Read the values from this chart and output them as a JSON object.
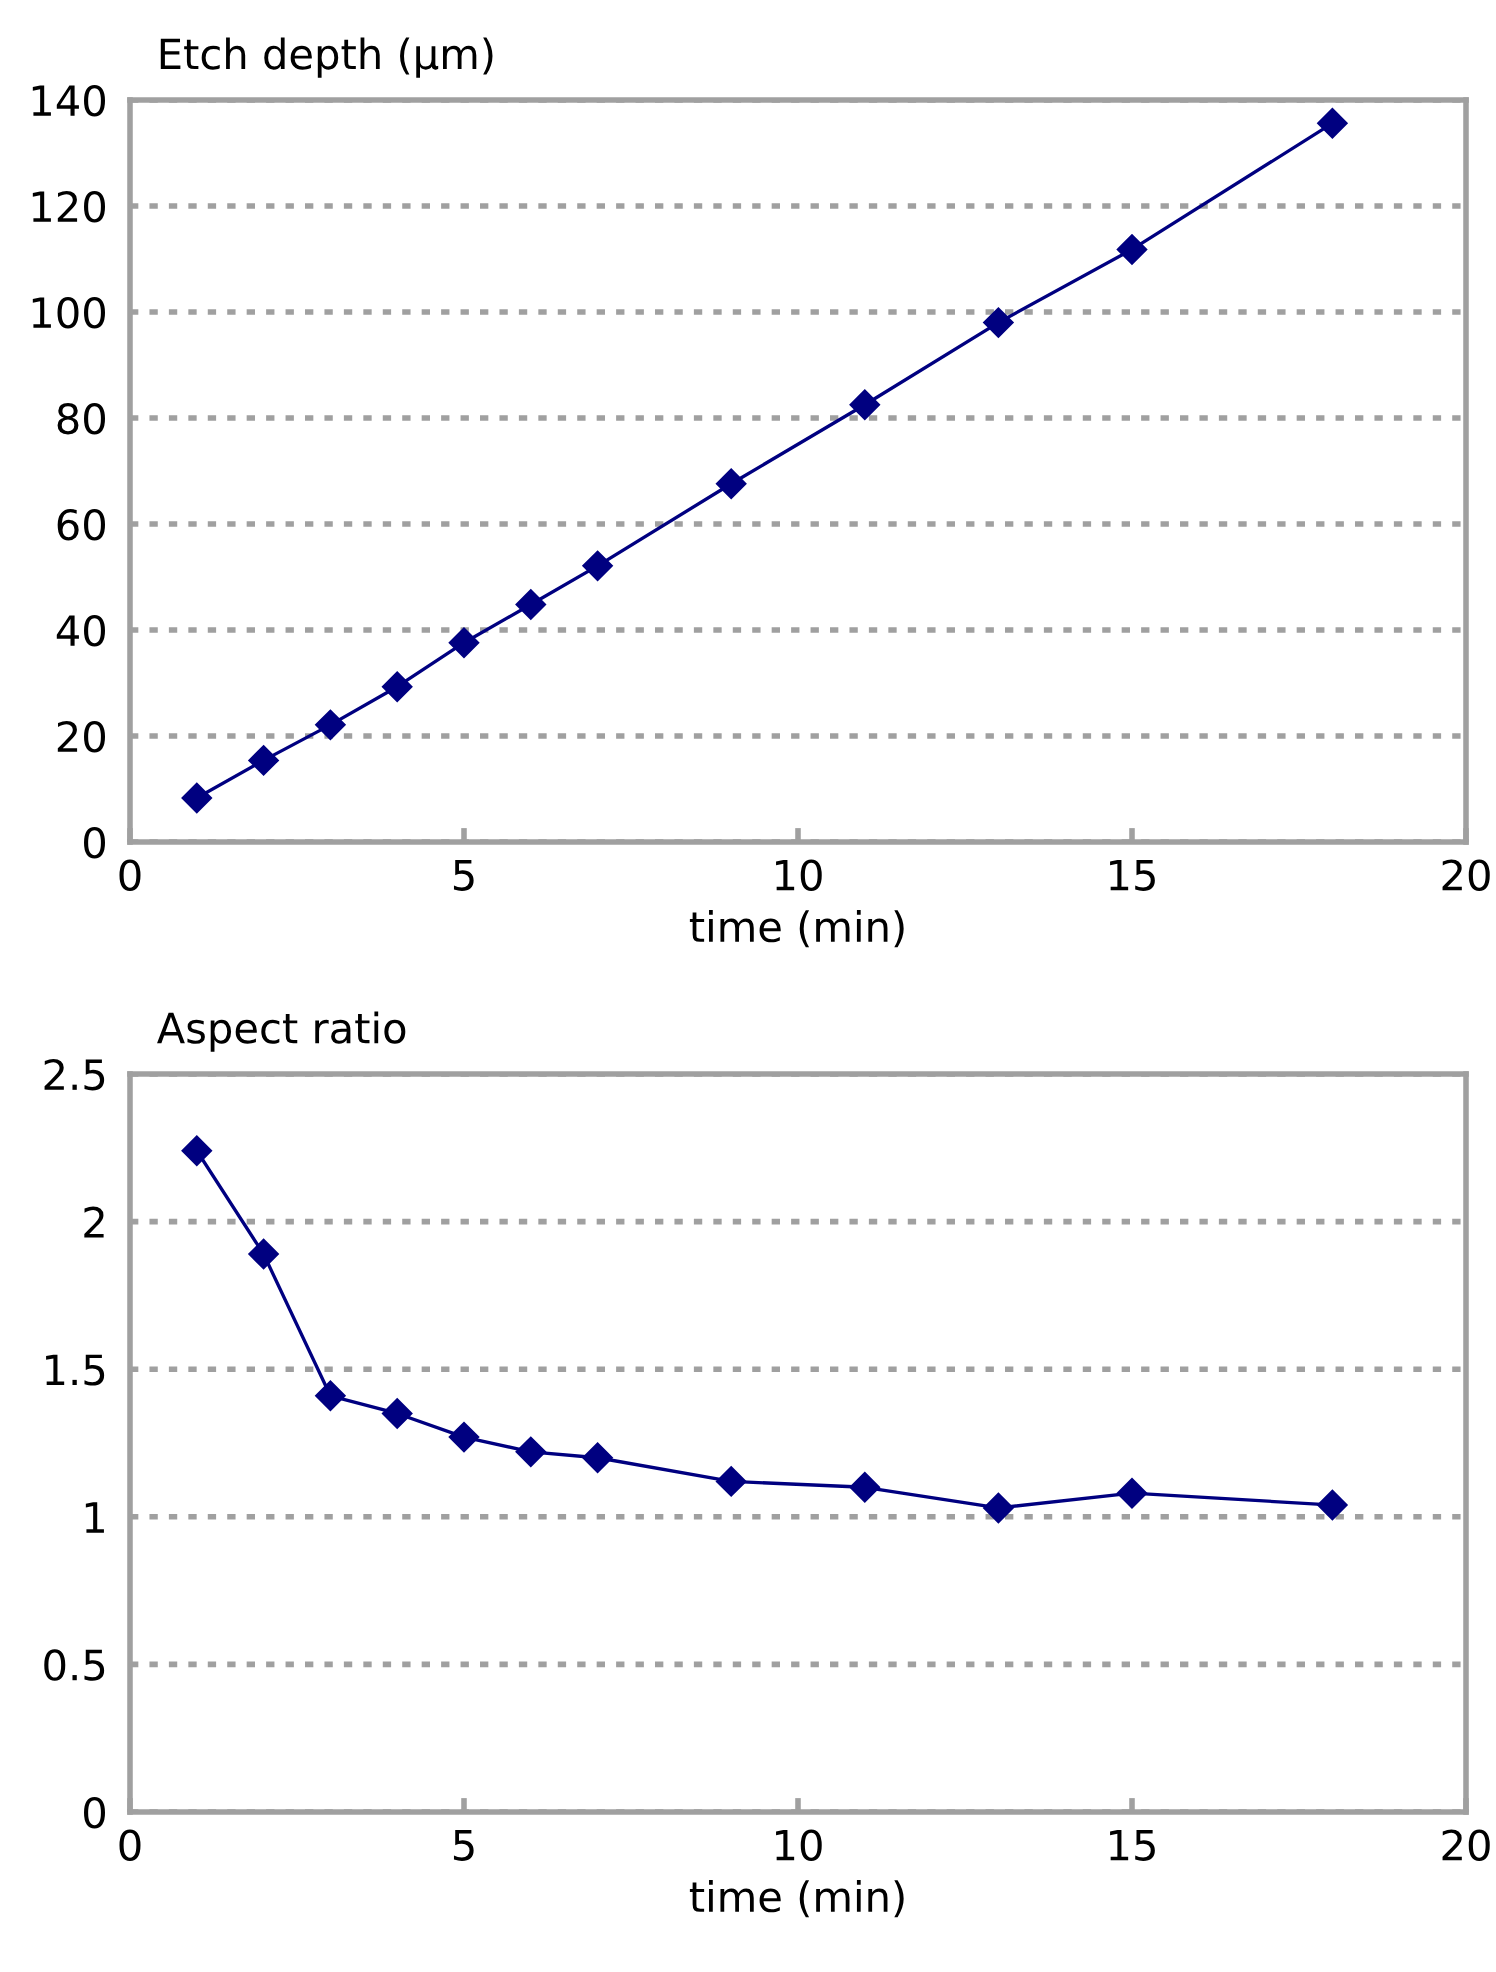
{
  "chart_data": [
    {
      "type": "line",
      "ylabel": "Etch depth (μm)",
      "xlabel": "time (min)",
      "x": [
        1,
        2,
        3,
        4,
        5,
        6,
        7,
        9,
        11,
        13,
        15,
        18
      ],
      "series": [
        {
          "color": "#000080",
          "values": [
            8.3,
            15.4,
            22.1,
            29.3,
            37.6,
            44.8,
            52.1,
            67.6,
            82.5,
            98.0,
            111.8,
            135.6
          ]
        }
      ],
      "xlim": [
        0,
        20
      ],
      "xticks": [
        0,
        5,
        10,
        15,
        20
      ],
      "ylim": [
        0,
        140
      ],
      "yticks": [
        0,
        20,
        40,
        60,
        80,
        100,
        120,
        140
      ],
      "grid": "y",
      "marker": "diamond",
      "line_style": "solid"
    },
    {
      "type": "line",
      "ylabel": "Aspect ratio",
      "xlabel": "time (min)",
      "x": [
        1,
        2,
        3,
        4,
        5,
        6,
        7,
        9,
        11,
        13,
        15,
        18
      ],
      "series": [
        {
          "color": "#000080",
          "values": [
            2.24,
            1.89,
            1.41,
            1.35,
            1.27,
            1.22,
            1.2,
            1.12,
            1.1,
            1.03,
            1.08,
            1.04
          ]
        }
      ],
      "xlim": [
        0,
        20
      ],
      "xticks": [
        0,
        5,
        10,
        15,
        20
      ],
      "ylim": [
        0,
        2.5
      ],
      "yticks": [
        0,
        0.5,
        1,
        1.5,
        2,
        2.5
      ],
      "grid": "y",
      "marker": "diamond",
      "line_style": "solid"
    }
  ]
}
